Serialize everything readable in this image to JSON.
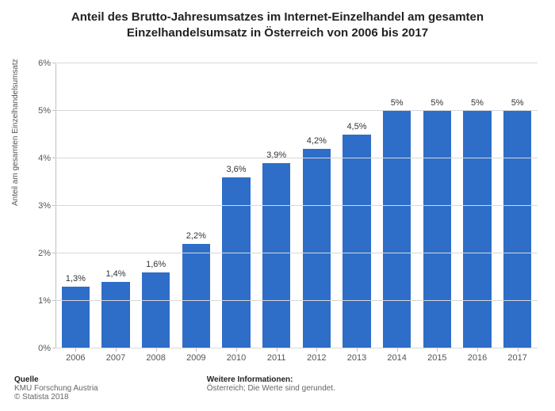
{
  "chart": {
    "type": "bar",
    "title": "Anteil des Brutto-Jahresumsatzes im Internet-Einzelhandel am gesamten Einzelhandelsumsatz in Österreich von 2006 bis 2017",
    "title_fontsize": 15,
    "ylabel": "Anteil am gesamten Einzelhandelsumsatz",
    "ylabel_fontsize": 10,
    "background_color": "#ffffff",
    "grid_color": "#d8d8d8",
    "bar_color": "#2e6ec8",
    "bar_width_ratio": 0.7,
    "categories": [
      "2006",
      "2007",
      "2008",
      "2009",
      "2010",
      "2011",
      "2012",
      "2013",
      "2014",
      "2015",
      "2016",
      "2017"
    ],
    "values": [
      1.3,
      1.4,
      1.6,
      2.2,
      3.6,
      3.9,
      4.2,
      4.5,
      5,
      5,
      5,
      5
    ],
    "value_labels": [
      "1,3%",
      "1,4%",
      "1,6%",
      "2,2%",
      "3,6%",
      "3,9%",
      "4,2%",
      "4,5%",
      "5%",
      "5%",
      "5%",
      "5%"
    ],
    "y_ticks": [
      0,
      1,
      2,
      3,
      4,
      5,
      6
    ],
    "y_tick_labels": [
      "0%",
      "1%",
      "2%",
      "3%",
      "4%",
      "5%",
      "6%"
    ],
    "ylim": [
      0,
      6
    ],
    "label_fontsize": 11
  },
  "footer": {
    "source_header": "Quelle",
    "source_line": "KMU Forschung Austria",
    "copyright": "© Statista 2018",
    "info_header": "Weitere Informationen:",
    "info_line": "Österreich; Die Werte sind gerundet."
  }
}
